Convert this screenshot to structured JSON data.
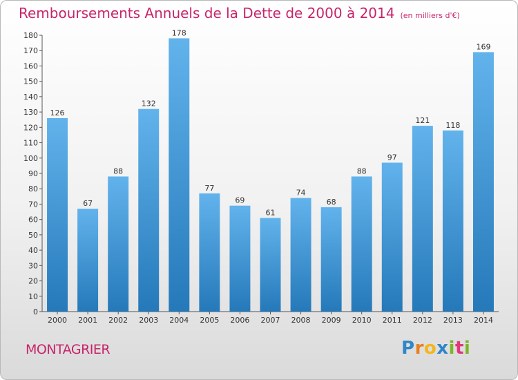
{
  "title": "Remboursements Annuels de la Dette de 2000 à 2014",
  "subtitle": "(en milliers d'€)",
  "commune": "MONTAGRIER",
  "logo": {
    "text": "Proxiti",
    "colors": [
      "#2f86c8",
      "#e87e1c",
      "#f3b61d",
      "#2f86c8",
      "#7cb527",
      "#e2367c",
      "#7cb527"
    ]
  },
  "colors": {
    "title": "#c8246b",
    "bar_light": "#62b3ec",
    "bar_dark": "#2579b9",
    "axis": "#555555"
  },
  "chart_data": {
    "type": "bar",
    "title": "Remboursements Annuels de la Dette de 2000 à 2014",
    "subtitle": "(en milliers d'€)",
    "categories": [
      "2000",
      "2001",
      "2002",
      "2003",
      "2004",
      "2005",
      "2006",
      "2007",
      "2008",
      "2009",
      "2010",
      "2011",
      "2012",
      "2013",
      "2014"
    ],
    "values": [
      126,
      67,
      88,
      132,
      178,
      77,
      69,
      61,
      74,
      68,
      88,
      97,
      121,
      118,
      169
    ],
    "xlabel": "",
    "ylabel": "",
    "ylim": [
      0,
      180
    ],
    "ytick_step": 10,
    "grid": false,
    "legend": "none"
  }
}
